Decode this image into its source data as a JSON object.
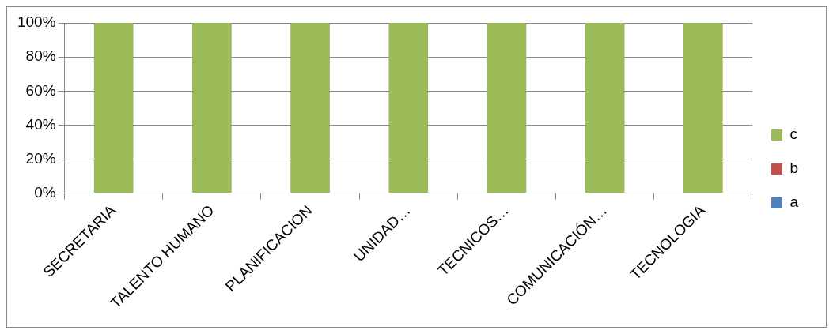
{
  "chart_data": {
    "type": "bar",
    "stacked": true,
    "categories": [
      "SECRETARIA",
      "TALENTO HUMANO",
      "PLANIFICACION",
      "UNIDAD…",
      "TECNICOS…",
      "COMUNICACIÓN…",
      "TECNOLOGIA"
    ],
    "series": [
      {
        "name": "a",
        "color": "#4f81bd",
        "values": [
          0,
          0,
          0,
          0,
          0,
          0,
          0
        ]
      },
      {
        "name": "b",
        "color": "#c0504d",
        "values": [
          0,
          0,
          0,
          0,
          0,
          0,
          0
        ]
      },
      {
        "name": "c",
        "color": "#9bbb59",
        "values": [
          100,
          100,
          100,
          100,
          100,
          100,
          100
        ]
      }
    ],
    "ylim": [
      0,
      100
    ],
    "yticks": [
      {
        "value": 0,
        "label": "0%"
      },
      {
        "value": 20,
        "label": "20%"
      },
      {
        "value": 40,
        "label": "40%"
      },
      {
        "value": 60,
        "label": "60%"
      },
      {
        "value": 80,
        "label": "80%"
      },
      {
        "value": 100,
        "label": "100%"
      }
    ],
    "grid": "y",
    "legend": "right"
  }
}
